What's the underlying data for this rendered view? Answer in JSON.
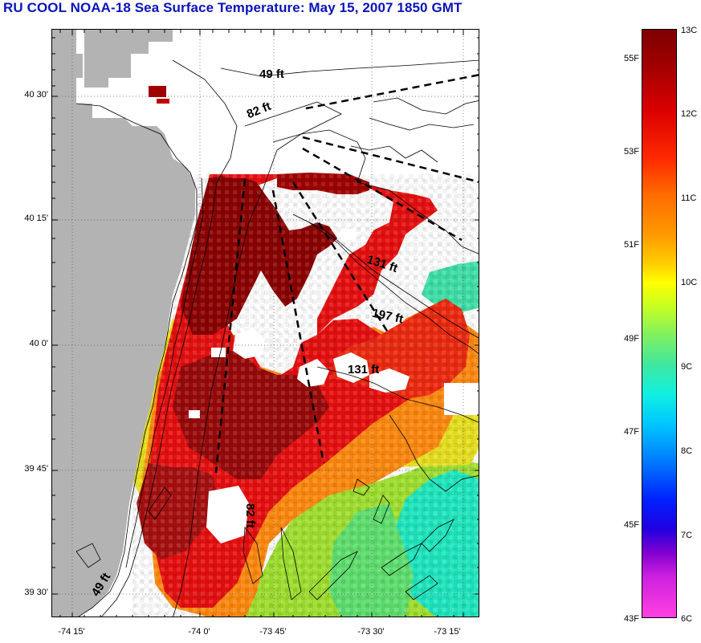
{
  "title": "RU COOL  NOAA-18  Sea Surface Temperature:  May 15, 2007 1850 GMT",
  "map": {
    "lat_labels": [
      "40 30'",
      "40 15'",
      "40 0'",
      "39 45'",
      "39 30'"
    ],
    "lon_labels": [
      "-74 15'",
      "-74 0'",
      "-73 45'",
      "-73 30'",
      "-73 15'"
    ],
    "depth_labels": [
      "49 ft",
      "82 ft",
      "131 ft",
      "197 ft",
      "131 ft",
      "82 ft",
      "49 ft"
    ],
    "colors": {
      "land": "#b3b3b3",
      "water_missing": "#ffffff",
      "warmest": "#800000",
      "coolest_shown": "#00e8d8"
    }
  },
  "colorbar": {
    "celsius_labels": [
      "13C",
      "12C",
      "11C",
      "10C",
      "9C",
      "8C",
      "7C",
      "6C"
    ],
    "fahrenheit_labels": [
      "55F",
      "53F",
      "51F",
      "49F",
      "47F",
      "45F",
      "43F"
    ]
  }
}
